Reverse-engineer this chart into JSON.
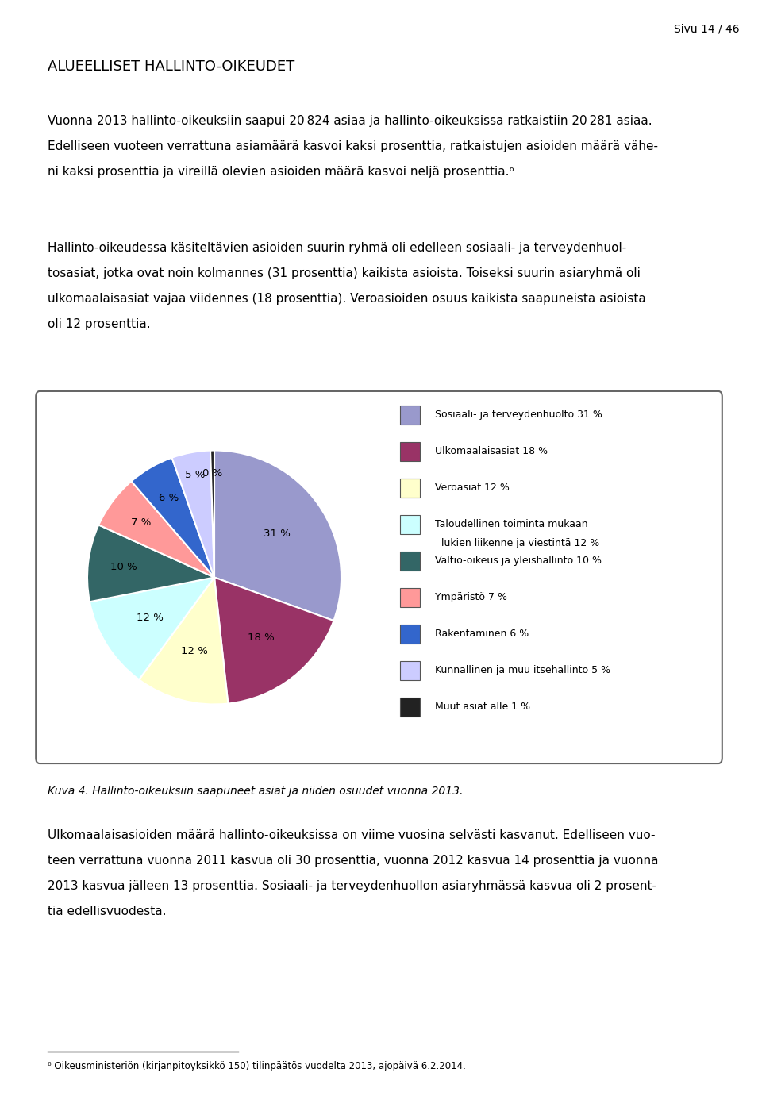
{
  "page_header": "Sivu 14 / 46",
  "section_title": "Alueelliset hallinto-oikeudet",
  "slices": [
    31,
    18,
    12,
    12,
    10,
    7,
    6,
    5,
    0.5
  ],
  "labels": [
    "31 %",
    "18 %",
    "12 %",
    "12 %",
    "10 %",
    "7 %",
    "6 %",
    "5 %",
    "0 %"
  ],
  "colors": [
    "#9999CC",
    "#993366",
    "#FFFFCC",
    "#CCFFFF",
    "#336666",
    "#FF9999",
    "#3366CC",
    "#CCCCFF",
    "#222222"
  ],
  "legend_labels": [
    "Sosiaali- ja terveydenhuolto 31 %",
    "Ulkomaalaisasiat 18 %",
    "Veroasiat 12 %",
    "Taloudellinen toiminta mukaan\n  lukien liikenne ja viestintä 12 %",
    "Valtio-oikeus ja yleishallinto 10 %",
    "Ympäristö 7 %",
    "Rakentaminen 6 %",
    "Kunnallinen ja muu itsehallinto 5 %",
    "Muut asiat alle 1 %"
  ],
  "figure_caption": "Kuva 4. Hallinto-oikeuksiin saapuneet asiat ja niiden osuudet vuonna 2013.",
  "background_color": "#FFFFFF",
  "text_color": "#000000"
}
